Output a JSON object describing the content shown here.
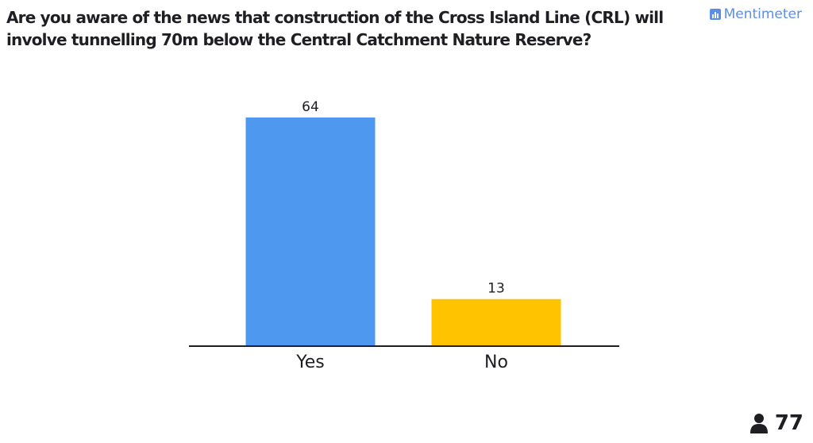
{
  "question": {
    "text": "Are you aware of the news that construction of the Cross Island Line (CRL) will involve tunnelling 70m below the Central Catchment Nature Reserve?"
  },
  "brand": {
    "label": "Mentimeter",
    "icon": "bar-chart-logo-icon",
    "color": "#5c8ee8"
  },
  "participants": {
    "icon": "person-icon",
    "count": "77"
  },
  "chart_data": {
    "type": "bar",
    "categories": [
      "Yes",
      "No"
    ],
    "values": [
      64,
      13
    ],
    "colors": [
      "#4f98ef",
      "#ffc300"
    ],
    "ylim": [
      0,
      64
    ],
    "grid": false,
    "legend": "none"
  }
}
